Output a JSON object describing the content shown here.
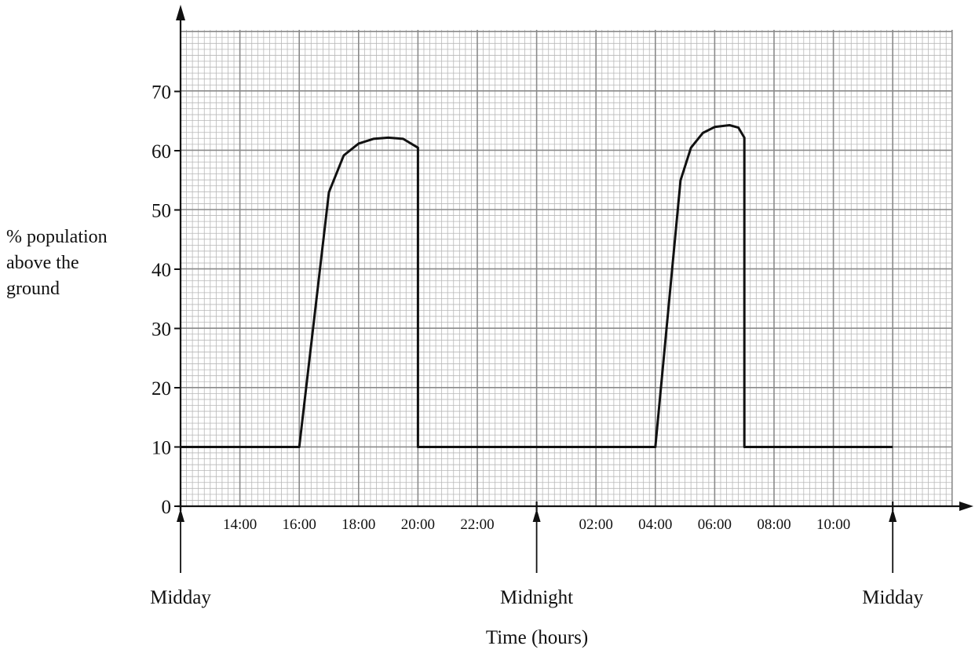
{
  "chart_data": {
    "type": "line",
    "title": "",
    "xlabel": "Time (hours)",
    "ylabel_lines": [
      "% population",
      "above the",
      "ground"
    ],
    "xlim": [
      12,
      40
    ],
    "ylim": [
      0,
      80
    ],
    "y_ticks": [
      0,
      10,
      20,
      30,
      40,
      50,
      60,
      70
    ],
    "x_ticks": [
      {
        "x": 14,
        "label": "14:00"
      },
      {
        "x": 16,
        "label": "16:00"
      },
      {
        "x": 18,
        "label": "18:00"
      },
      {
        "x": 20,
        "label": "20:00"
      },
      {
        "x": 22,
        "label": "22:00"
      },
      {
        "x": 26,
        "label": "02:00"
      },
      {
        "x": 28,
        "label": "04:00"
      },
      {
        "x": 30,
        "label": "06:00"
      },
      {
        "x": 32,
        "label": "08:00"
      },
      {
        "x": 34,
        "label": "10:00"
      }
    ],
    "markers": [
      {
        "x": 12,
        "label": "Midday"
      },
      {
        "x": 24,
        "label": "Midnight"
      },
      {
        "x": 36,
        "label": "Midday"
      }
    ],
    "grid": true,
    "series": [
      {
        "x": [
          12,
          16,
          17,
          17.5,
          18,
          18.5,
          19,
          19.5,
          20,
          20,
          28,
          28.85,
          29.2,
          29.6,
          30,
          30.5,
          30.8,
          31,
          31,
          36
        ],
        "values": [
          10,
          10,
          53,
          59.2,
          61.2,
          62,
          62.2,
          62,
          60.5,
          10,
          10,
          55,
          60.5,
          63,
          64,
          64.3,
          63.9,
          62.2,
          10,
          10
        ]
      }
    ]
  }
}
